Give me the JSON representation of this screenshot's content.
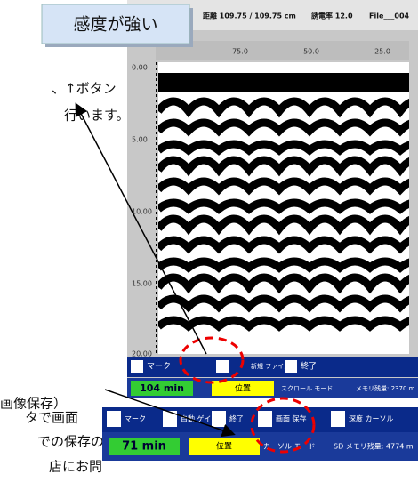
{
  "doc_text": {
    "lines": [
      "、↑ボタン",
      "行います。",
      "画像保存）",
      "タで画面",
      "での保存の",
      "店にお問"
    ]
  },
  "badge": "感度が強い",
  "screen": {
    "header": {
      "distance": "距離 109.75 / 109.75 cm",
      "permittivity": "誘電率 12.0",
      "file": "File___004"
    },
    "x_scale": [
      "75.0",
      "50.0",
      "25.0"
    ],
    "y_scale": [
      "0.00",
      "5.00",
      "10.00",
      "15.00",
      "20.00"
    ],
    "buttons": [
      "マーク",
      "新規 ファイル",
      "終了"
    ],
    "status": {
      "time": "104 min",
      "position": "位置",
      "mode": "スクロール モード",
      "memory": "メモリ残量: 2370 m"
    }
  },
  "toolbar": {
    "buttons": [
      "マーク",
      "自動 ゲイン",
      "終了",
      "画面 保存",
      "深度 カーソル"
    ],
    "status": {
      "time": "71 min",
      "position": "位置",
      "mode": "カーソル モード",
      "memory": "SD メモリ残量: 4774 m"
    }
  }
}
